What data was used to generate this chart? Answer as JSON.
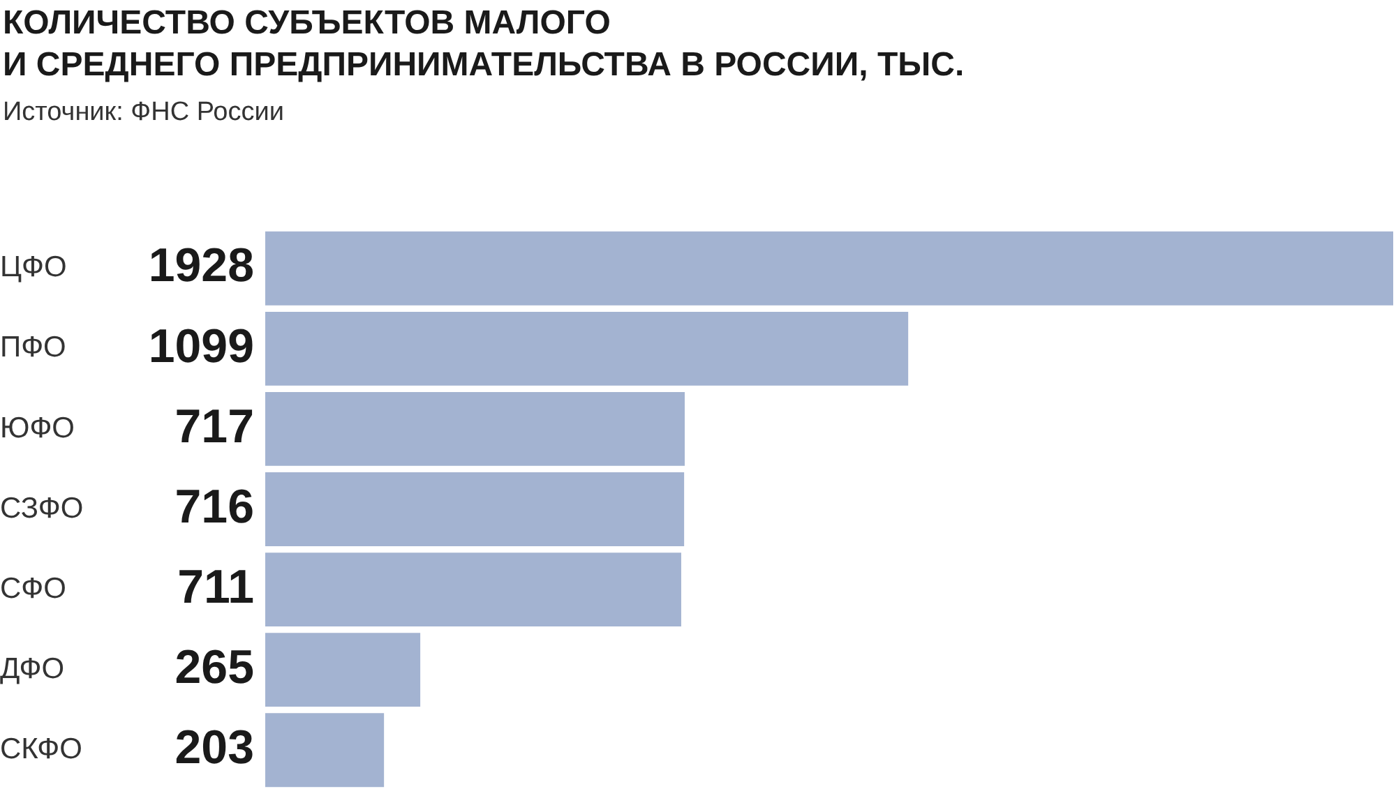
{
  "chart_data": {
    "type": "bar",
    "orientation": "horizontal",
    "title": "КОЛИЧЕСТВО СУБЪЕКТОВ МАЛОГО\nИ СРЕДНЕГО ПРЕДПРИНИМАТЕЛЬСТВА В РОССИИ, ТЫС.",
    "annotations": [
      "Источник: ФНС России"
    ],
    "categories": [
      "ЦФО",
      "ПФО",
      "ЮФО",
      "СЗФО",
      "СФО",
      "ДФО",
      "СКФО"
    ],
    "values": [
      1928,
      1099,
      717,
      716,
      711,
      265,
      203
    ],
    "color": "#a3b3d1",
    "data_labels": true,
    "grid": false,
    "legend": false
  }
}
